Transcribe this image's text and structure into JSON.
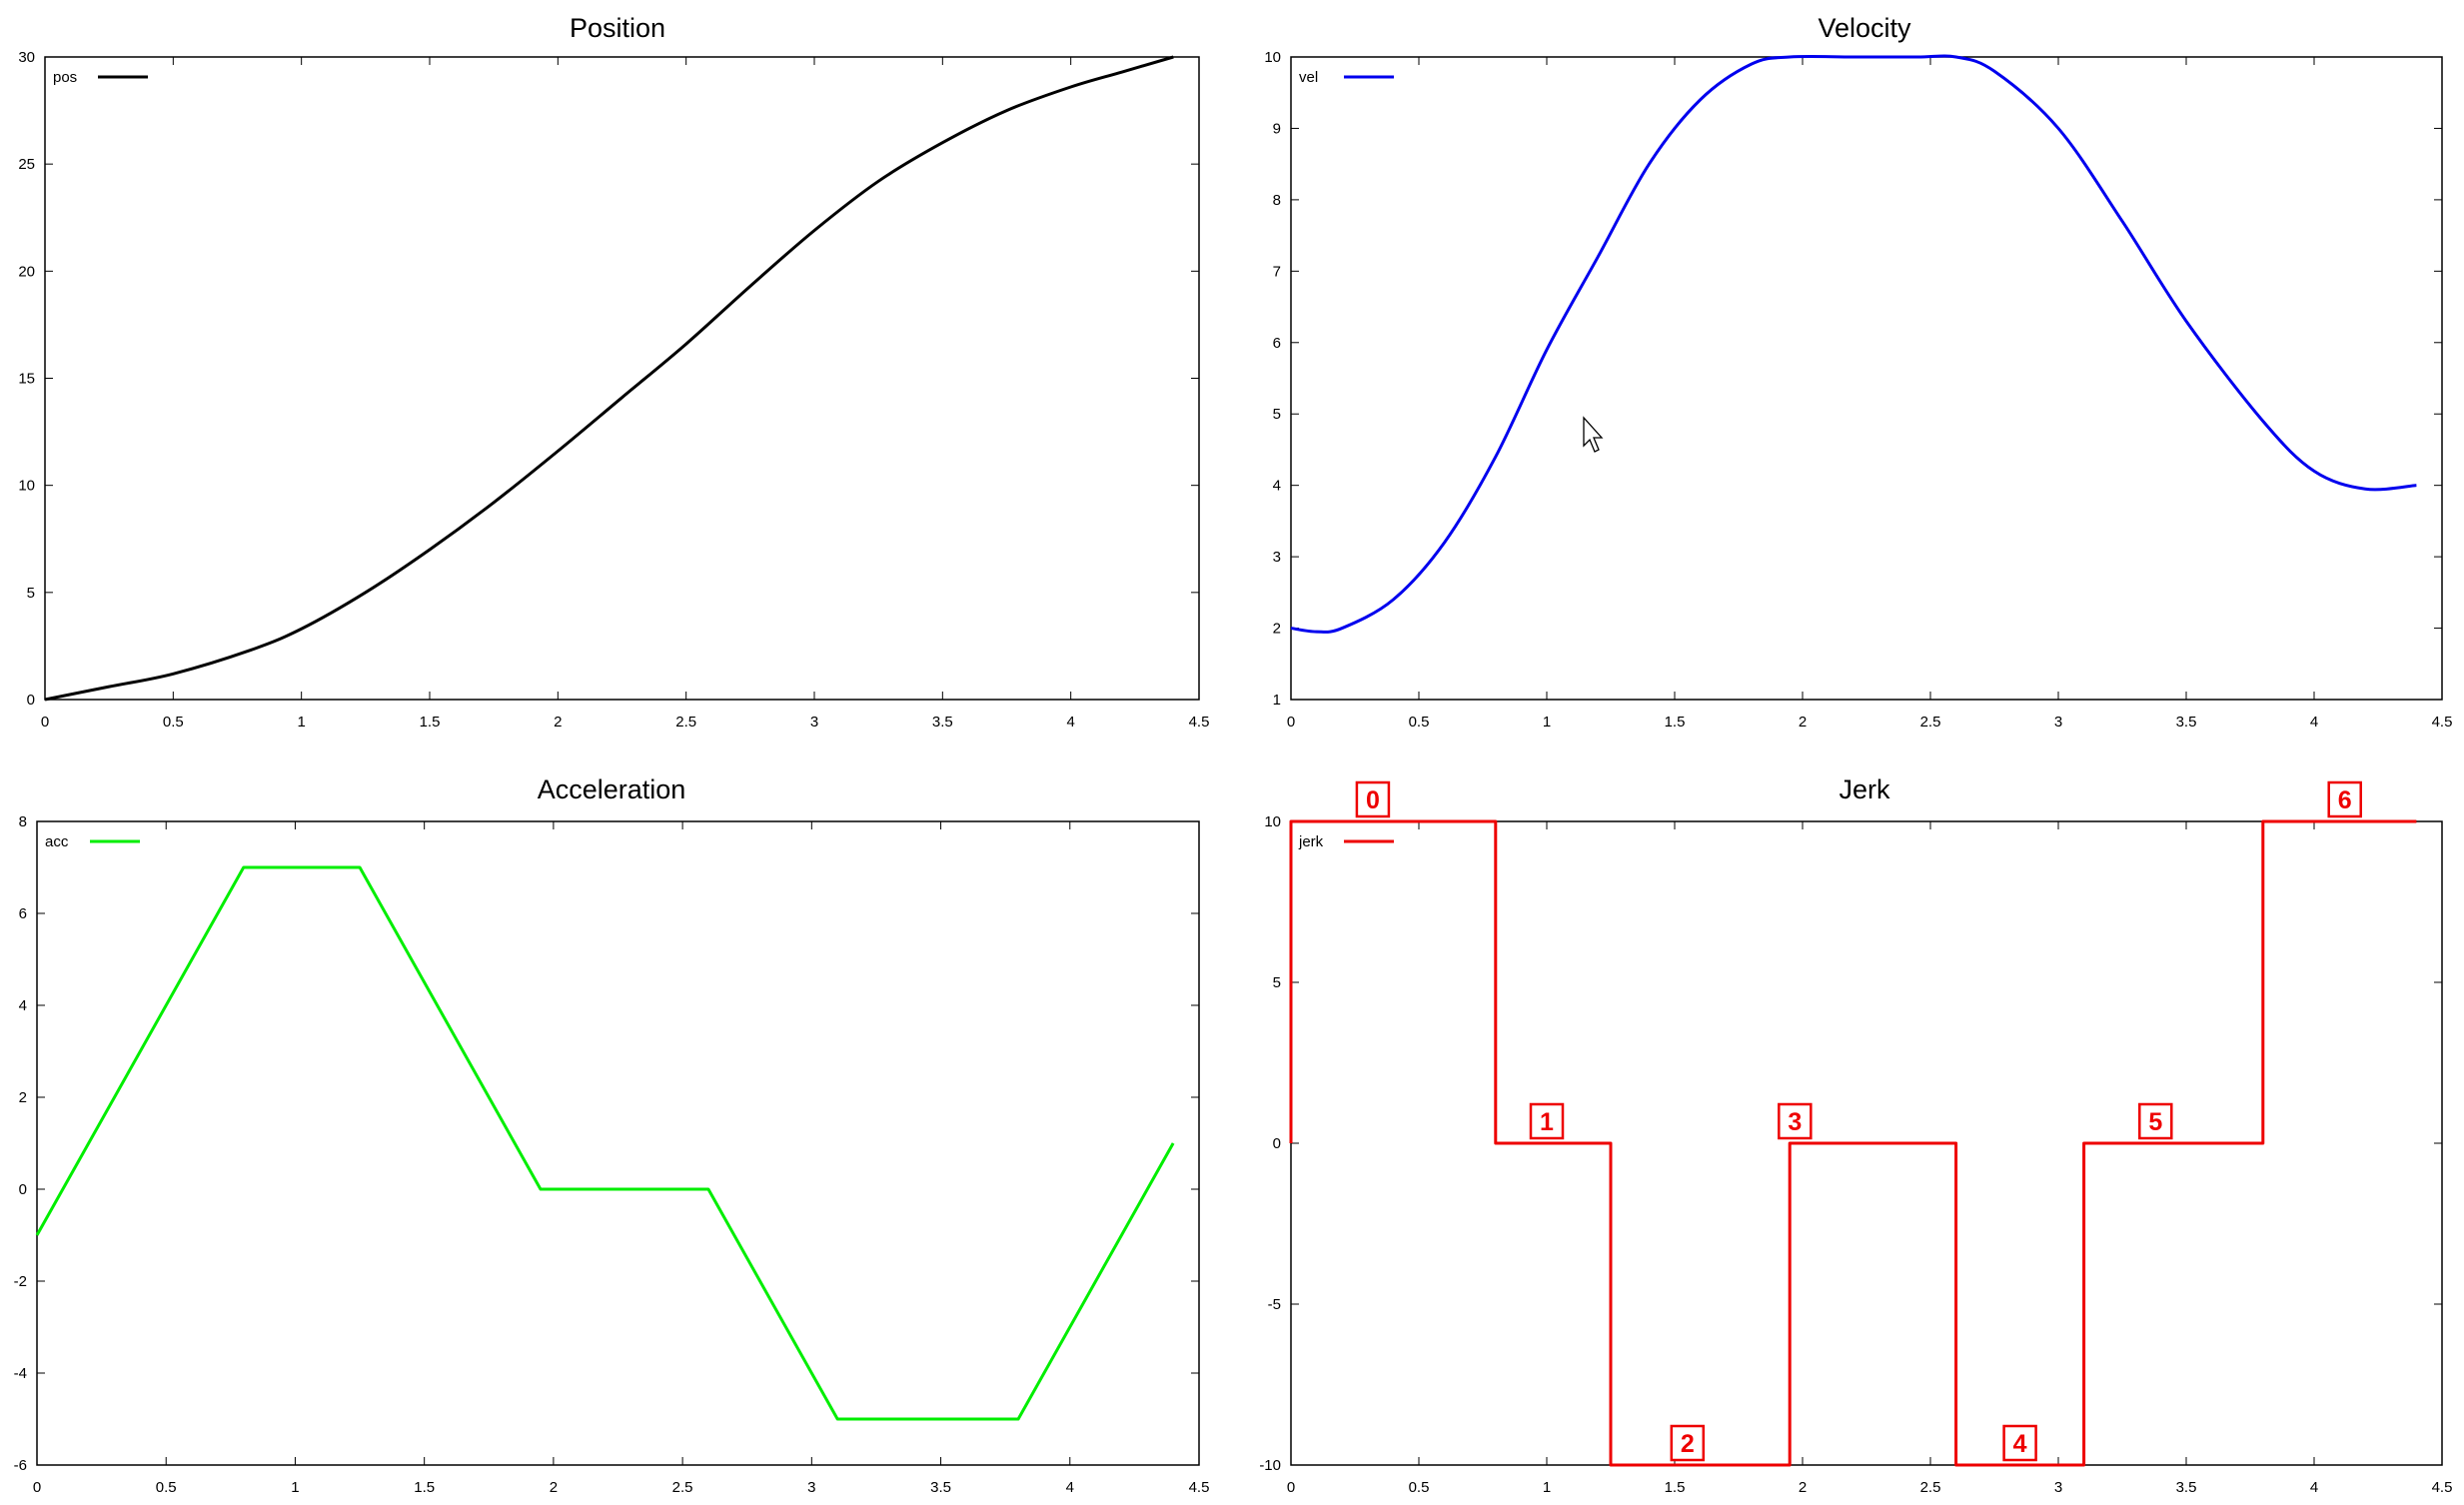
{
  "chart_data": [
    {
      "type": "line",
      "title": "Position",
      "xlabel": "",
      "ylabel": "",
      "xlim": [
        0,
        4.5
      ],
      "ylim": [
        0,
        30
      ],
      "x_ticks": [
        "0",
        "0.5",
        "1",
        "1.5",
        "2",
        "2.5",
        "3",
        "3.5",
        "4",
        "4.5"
      ],
      "y_ticks": [
        "0",
        "5",
        "10",
        "15",
        "20",
        "25",
        "30"
      ],
      "legend_position": "top-left",
      "grid": false,
      "series": [
        {
          "name": "pos",
          "color": "#000000",
          "interpolation": "smooth",
          "x": [
            0,
            0.25,
            0.5,
            0.8,
            1,
            1.25,
            1.5,
            1.75,
            2,
            2.25,
            2.5,
            2.75,
            3,
            3.25,
            3.5,
            3.75,
            4,
            4.2,
            4.4
          ],
          "y": [
            0,
            0.6,
            1.2,
            2.3,
            3.3,
            5.0,
            7.0,
            9.2,
            11.6,
            14.1,
            16.6,
            19.3,
            21.9,
            24.2,
            26.0,
            27.5,
            28.6,
            29.3,
            30.0
          ]
        }
      ]
    },
    {
      "type": "line",
      "title": "Velocity",
      "xlabel": "",
      "ylabel": "",
      "xlim": [
        0,
        4.5
      ],
      "ylim": [
        1,
        10
      ],
      "x_ticks": [
        "0",
        "0.5",
        "1",
        "1.5",
        "2",
        "2.5",
        "3",
        "3.5",
        "4",
        "4.5"
      ],
      "y_ticks": [
        "1",
        "2",
        "3",
        "4",
        "5",
        "6",
        "7",
        "8",
        "9",
        "10"
      ],
      "legend_position": "top-left",
      "grid": false,
      "series": [
        {
          "name": "vel",
          "color": "#0000ee",
          "interpolation": "smooth",
          "x": [
            0,
            0.1,
            0.2,
            0.4,
            0.6,
            0.8,
            1.0,
            1.2,
            1.4,
            1.6,
            1.8,
            1.95,
            2.2,
            2.45,
            2.6,
            2.75,
            3.0,
            3.25,
            3.5,
            3.8,
            4.0,
            4.2,
            4.4
          ],
          "y": [
            2.0,
            1.95,
            2.0,
            2.4,
            3.2,
            4.4,
            5.9,
            7.2,
            8.5,
            9.4,
            9.9,
            10.0,
            10.0,
            10.0,
            10.0,
            9.8,
            9.0,
            7.7,
            6.3,
            4.9,
            4.2,
            3.95,
            4.0
          ]
        }
      ]
    },
    {
      "type": "line",
      "title": "Acceleration",
      "xlabel": "",
      "ylabel": "",
      "xlim": [
        0,
        4.5
      ],
      "ylim": [
        -6,
        8
      ],
      "x_ticks": [
        "0",
        "0.5",
        "1",
        "1.5",
        "2",
        "2.5",
        "3",
        "3.5",
        "4",
        "4.5"
      ],
      "y_ticks": [
        "-6",
        "-4",
        "-2",
        "0",
        "2",
        "4",
        "6",
        "8"
      ],
      "legend_position": "top-left",
      "grid": false,
      "series": [
        {
          "name": "acc",
          "color": "#00ee00",
          "interpolation": "linear",
          "x": [
            0,
            0.8,
            1.25,
            1.95,
            2.6,
            3.1,
            3.8,
            4.4
          ],
          "y": [
            -1,
            7,
            7,
            0,
            0,
            -5,
            -5,
            1
          ]
        }
      ]
    },
    {
      "type": "line",
      "title": "Jerk",
      "xlabel": "",
      "ylabel": "",
      "xlim": [
        0,
        4.5
      ],
      "ylim": [
        -10,
        10
      ],
      "x_ticks": [
        "0",
        "0.5",
        "1",
        "1.5",
        "2",
        "2.5",
        "3",
        "3.5",
        "4",
        "4.5"
      ],
      "y_ticks": [
        "-10",
        "-5",
        "0",
        "5",
        "10"
      ],
      "legend_position": "top-left",
      "grid": false,
      "series": [
        {
          "name": "jerk",
          "color": "#ee0000",
          "interpolation": "step",
          "x": [
            0,
            0,
            0.8,
            0.8,
            1.25,
            1.25,
            1.95,
            1.95,
            2.6,
            2.6,
            3.1,
            3.1,
            3.8,
            3.8,
            4.4
          ],
          "y": [
            0,
            10,
            10,
            0,
            0,
            -10,
            -10,
            0,
            0,
            -10,
            -10,
            0,
            0,
            10,
            10
          ]
        }
      ],
      "annotations": [
        {
          "text": "0",
          "x": 0.32,
          "y": 10
        },
        {
          "text": "1",
          "x": 1.0,
          "y": 0
        },
        {
          "text": "2",
          "x": 1.55,
          "y": -10
        },
        {
          "text": "3",
          "x": 1.97,
          "y": 0
        },
        {
          "text": "4",
          "x": 2.85,
          "y": -10
        },
        {
          "text": "5",
          "x": 3.38,
          "y": 0
        },
        {
          "text": "6",
          "x": 4.12,
          "y": 10
        }
      ]
    }
  ]
}
